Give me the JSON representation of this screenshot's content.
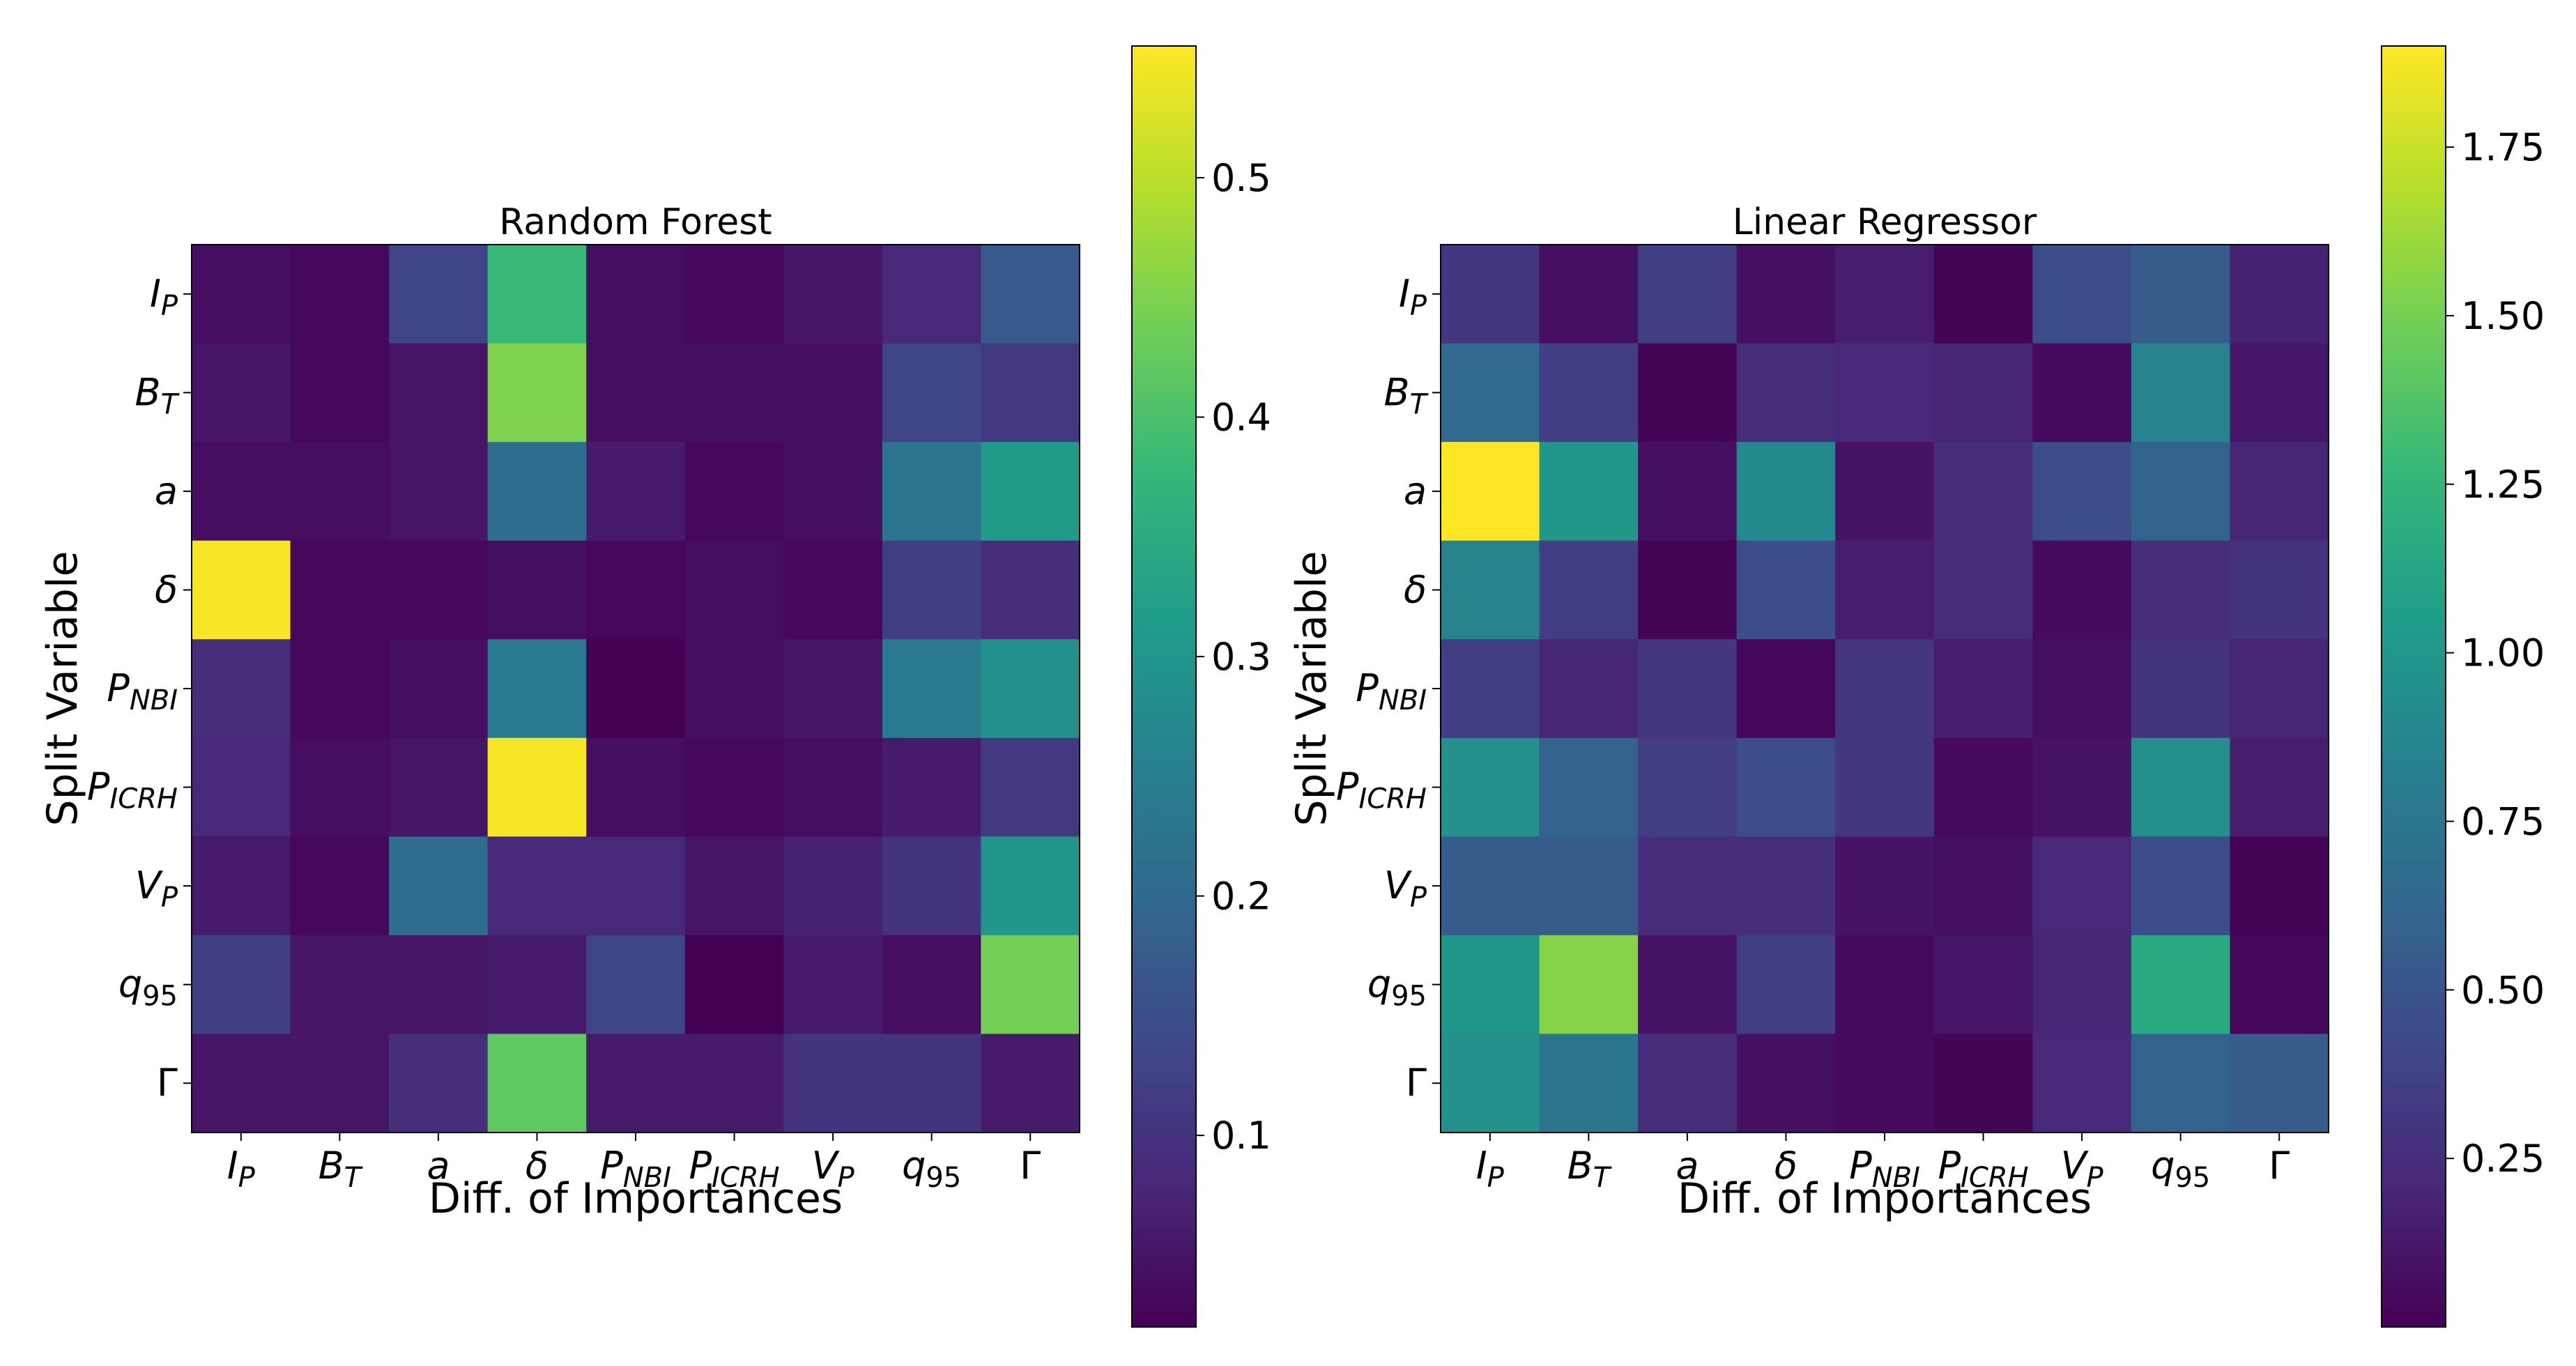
{
  "colormap": "viridis",
  "colormap_stops": [
    "#440154",
    "#482878",
    "#3e4989",
    "#31688e",
    "#26828e",
    "#1f9e89",
    "#35b779",
    "#6ece58",
    "#b5de2b",
    "#fde725"
  ],
  "chart_data": [
    {
      "type": "heatmap",
      "title": "Random Forest",
      "xlabel": "Diff. of Importances",
      "ylabel": "Split Variable",
      "x_tick_labels": [
        "I_P",
        "B_T",
        "a",
        "δ",
        "P_NBI",
        "P_ICRH",
        "V_P",
        "q_95",
        "Γ"
      ],
      "y_tick_labels": [
        "I_P",
        "B_T",
        "a",
        "δ",
        "P_NBI",
        "P_ICRH",
        "V_P",
        "q_95",
        "Γ"
      ],
      "values": [
        [
          0.04,
          0.03,
          0.13,
          0.38,
          0.04,
          0.03,
          0.05,
          0.08,
          0.17
        ],
        [
          0.05,
          0.03,
          0.05,
          0.45,
          0.04,
          0.04,
          0.04,
          0.13,
          0.11
        ],
        [
          0.04,
          0.04,
          0.05,
          0.21,
          0.06,
          0.03,
          0.04,
          0.23,
          0.31
        ],
        [
          0.55,
          0.03,
          0.03,
          0.04,
          0.03,
          0.04,
          0.03,
          0.12,
          0.09
        ],
        [
          0.09,
          0.03,
          0.04,
          0.24,
          0.02,
          0.04,
          0.05,
          0.24,
          0.29
        ],
        [
          0.08,
          0.04,
          0.05,
          0.55,
          0.04,
          0.03,
          0.04,
          0.06,
          0.11
        ],
        [
          0.06,
          0.03,
          0.21,
          0.08,
          0.08,
          0.05,
          0.07,
          0.1,
          0.3
        ],
        [
          0.12,
          0.05,
          0.05,
          0.06,
          0.13,
          0.02,
          0.06,
          0.04,
          0.44
        ],
        [
          0.05,
          0.05,
          0.09,
          0.42,
          0.06,
          0.06,
          0.1,
          0.1,
          0.06
        ]
      ],
      "colorbar": {
        "min": 0.02,
        "max": 0.555,
        "ticks": [
          0.1,
          0.2,
          0.3,
          0.4,
          0.5
        ],
        "tick_labels": [
          "0.1",
          "0.2",
          "0.3",
          "0.4",
          "0.5"
        ]
      }
    },
    {
      "type": "heatmap",
      "title": "Linear Regressor",
      "xlabel": "Diff. of Importances",
      "ylabel": "Split Variable",
      "x_tick_labels": [
        "I_P",
        "B_T",
        "a",
        "δ",
        "P_NBI",
        "P_ICRH",
        "V_P",
        "q_95",
        "Γ"
      ],
      "y_tick_labels": [
        "I_P",
        "B_T",
        "a",
        "δ",
        "P_NBI",
        "P_ICRH",
        "V_P",
        "q_95",
        "Γ"
      ],
      "values": [
        [
          0.3,
          0.08,
          0.35,
          0.08,
          0.15,
          0.02,
          0.45,
          0.55,
          0.18
        ],
        [
          0.65,
          0.35,
          0.02,
          0.25,
          0.22,
          0.2,
          0.05,
          0.85,
          0.12
        ],
        [
          1.9,
          1.0,
          0.08,
          0.9,
          0.1,
          0.25,
          0.45,
          0.6,
          0.2
        ],
        [
          0.85,
          0.35,
          0.02,
          0.45,
          0.15,
          0.25,
          0.05,
          0.25,
          0.28
        ],
        [
          0.35,
          0.2,
          0.3,
          0.03,
          0.3,
          0.15,
          0.08,
          0.28,
          0.2
        ],
        [
          0.95,
          0.6,
          0.35,
          0.45,
          0.3,
          0.05,
          0.1,
          0.95,
          0.15
        ],
        [
          0.55,
          0.55,
          0.25,
          0.25,
          0.1,
          0.08,
          0.22,
          0.45,
          0.02
        ],
        [
          1.0,
          1.55,
          0.1,
          0.35,
          0.05,
          0.12,
          0.2,
          1.15,
          0.03
        ],
        [
          0.95,
          0.75,
          0.25,
          0.08,
          0.05,
          0.02,
          0.22,
          0.6,
          0.55
        ]
      ],
      "colorbar": {
        "min": 0.0,
        "max": 1.9,
        "ticks": [
          0.25,
          0.5,
          0.75,
          1.0,
          1.25,
          1.5,
          1.75
        ],
        "tick_labels": [
          "0.25",
          "0.50",
          "0.75",
          "1.00",
          "1.25",
          "1.50",
          "1.75"
        ]
      }
    }
  ]
}
